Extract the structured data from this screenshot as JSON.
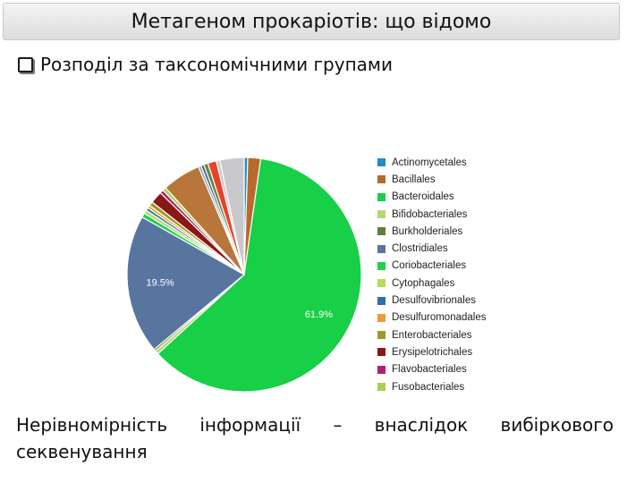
{
  "header": {
    "title": "Метагеном прокаріотів: що відомо"
  },
  "bullet": {
    "text": "Розподіл за таксономічними групами"
  },
  "chart_data": {
    "type": "pie",
    "series": [
      {
        "values": [
          {
            "label": "Actinomycetales",
            "value": 0.5,
            "color": "#1f8ec4"
          },
          {
            "label": "Bacillales",
            "value": 1.8,
            "color": "#b86a2c"
          },
          {
            "label": "Bacteroidales",
            "value": 61.9,
            "color": "#18cf48",
            "data_label": "61.9%"
          },
          {
            "label": "Bifidobacteriales",
            "value": 0.5,
            "color": "#b3d872"
          },
          {
            "label": "Burkholderiales",
            "value": 0.3,
            "color": "#5f7f3a"
          },
          {
            "label": "Clostridiales",
            "value": 19.5,
            "color": "#5875a0",
            "data_label": "19.5%"
          },
          {
            "label": "Coriobacteriales",
            "value": 0.6,
            "color": "#20d050"
          },
          {
            "label": "Cytophagales",
            "value": 0.5,
            "color": "#b5dc5a"
          },
          {
            "label": "Desulfovibrionales",
            "value": 0.4,
            "color": "#2c6fa8"
          },
          {
            "label": "Desulfuromonadales",
            "value": 0.4,
            "color": "#f09a3a"
          },
          {
            "label": "Enterobacteriales",
            "value": 0.6,
            "color": "#9a9a2a"
          },
          {
            "label": "Erysipelotrichales",
            "value": 1.7,
            "color": "#8a1616"
          },
          {
            "label": "Flavobacteriales",
            "value": 0.5,
            "color": "#b0206e"
          },
          {
            "label": "Fusobacteriales",
            "value": 0.5,
            "color": "#a8cf50"
          },
          {
            "label": "",
            "value": 5.4,
            "color": "#b8763a"
          },
          {
            "label": "",
            "value": 0.4,
            "color": "#9aa8b8"
          },
          {
            "label": "",
            "value": 0.4,
            "color": "#3a5a8a"
          },
          {
            "label": "",
            "value": 0.6,
            "color": "#6a8840"
          },
          {
            "label": "",
            "value": 1.2,
            "color": "#e8422a"
          },
          {
            "label": "",
            "value": 0.5,
            "color": "#c8c8c8"
          },
          {
            "label": "",
            "value": 3.4,
            "color": "#c9c9cc"
          }
        ]
      }
    ],
    "legend": {
      "placement": "right"
    },
    "start_angle_deg": 0,
    "direction": "clockwise"
  },
  "footer": {
    "text": "Нерівномірність інформації – внаслідок вибіркового секвенування"
  }
}
